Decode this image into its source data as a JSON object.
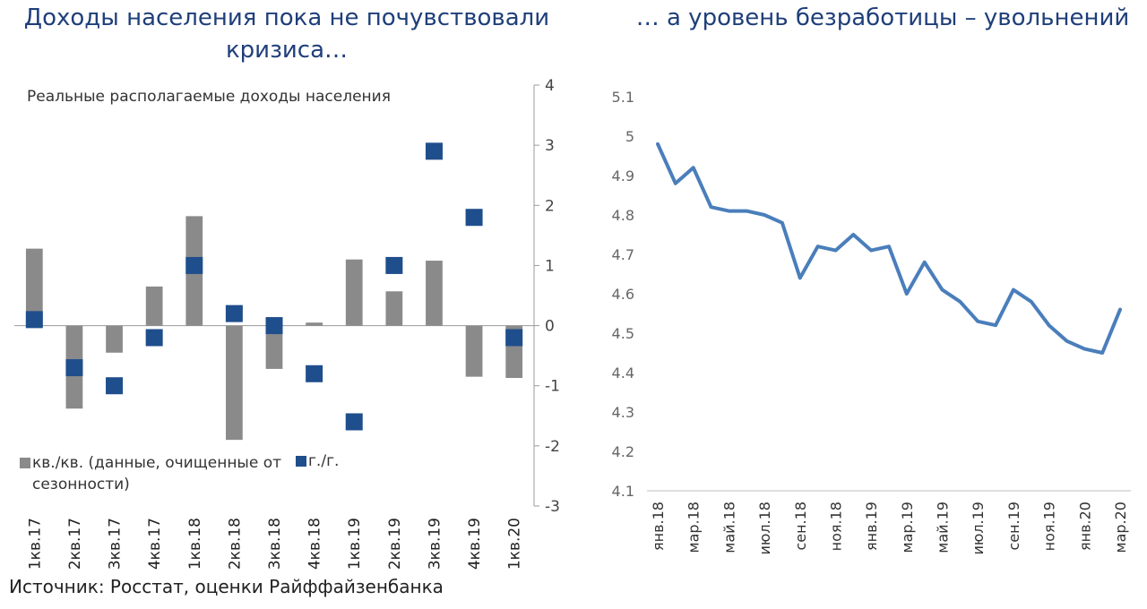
{
  "titles": {
    "left": "Доходы населения пока не почувствовали кризиса…",
    "right": "… а уровень безработицы – увольнений"
  },
  "source": "Источник: Росстат, оценки Райффайзенбанка",
  "colors": {
    "title": "#1f3f7a",
    "bar": "#8a8a8a",
    "marker": "#1f4e8c",
    "line": "#4a7ebb"
  },
  "chart_data": [
    {
      "type": "bar",
      "title": "Реальные располагаемые доходы населения",
      "categories": [
        "1кв.17",
        "2кв.17",
        "3кв.17",
        "4кв.17",
        "1кв.18",
        "2кв.18",
        "3кв.18",
        "4кв.18",
        "1кв.19",
        "2кв.19",
        "3кв.19",
        "4кв.19",
        "1кв.20"
      ],
      "series": [
        {
          "name": "кв./кв. (данные, очищенные от сезонности)",
          "kind": "bar",
          "values": [
            1.28,
            -1.38,
            -0.45,
            0.65,
            1.82,
            -1.9,
            -0.72,
            0.05,
            1.1,
            0.57,
            1.08,
            -0.85,
            -0.87
          ]
        },
        {
          "name": "г./г.",
          "kind": "marker",
          "values": [
            0.1,
            -0.7,
            -1.0,
            -0.2,
            1.0,
            0.2,
            0.0,
            -0.8,
            -1.6,
            1.0,
            2.9,
            1.8,
            -0.2
          ]
        }
      ],
      "ylim": [
        -3,
        4
      ],
      "yticks": [
        "4",
        "3",
        "2",
        "1",
        "0",
        "-1",
        "-2",
        "-3"
      ],
      "legend": "bottom-left"
    },
    {
      "type": "line",
      "x": [
        "янв.18",
        "фев.18",
        "мар.18",
        "апр.18",
        "май.18",
        "июн.18",
        "июл.18",
        "авг.18",
        "сен.18",
        "окт.18",
        "ноя.18",
        "дек.18",
        "янв.19",
        "фев.19",
        "мар.19",
        "апр.19",
        "май.19",
        "июн.19",
        "июл.19",
        "авг.19",
        "сен.19",
        "окт.19",
        "ноя.19",
        "дек.19",
        "янв.20",
        "фев.20",
        "мар.20"
      ],
      "xticks": [
        "янв.18",
        "мар.18",
        "май.18",
        "июл.18",
        "сен.18",
        "ноя.18",
        "янв.19",
        "мар.19",
        "май.19",
        "июл.19",
        "сен.19",
        "ноя.19",
        "янв.20",
        "мар.20"
      ],
      "values": [
        4.98,
        4.88,
        4.92,
        4.82,
        4.81,
        4.81,
        4.8,
        4.78,
        4.64,
        4.72,
        4.71,
        4.75,
        4.71,
        4.72,
        4.6,
        4.68,
        4.61,
        4.58,
        4.53,
        4.52,
        4.61,
        4.58,
        4.52,
        4.48,
        4.46,
        4.45,
        4.56
      ],
      "ylim": [
        4.1,
        5.1
      ],
      "yticks": [
        "5.1",
        "5",
        "4.9",
        "4.8",
        "4.7",
        "4.6",
        "4.5",
        "4.4",
        "4.3",
        "4.2",
        "4.1"
      ]
    }
  ]
}
